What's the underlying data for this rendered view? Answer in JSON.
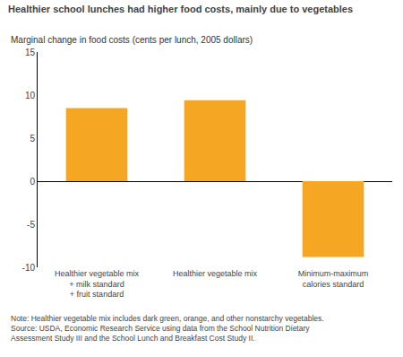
{
  "chart_data": {
    "type": "bar",
    "title": "Healthier school lunches had higher food costs, mainly due to vegetables",
    "ylabel": "Marginal change in food costs (cents per lunch, 2005 dollars)",
    "categories": [
      "Healthier vegetable mix\n+ milk standard\n+ fruit standard",
      "Healthier vegetable mix",
      "Minimum-maximum\ncalories standard"
    ],
    "values": [
      8.5,
      9.4,
      -8.8
    ],
    "color": "#F5A623",
    "ylim": [
      -10,
      15
    ],
    "yticks": [
      -10,
      -5,
      0,
      5,
      10,
      15
    ],
    "grid": false,
    "annotations": [
      "Note: Healthier vegetable mix includes dark green, orange, and other nonstarchy vegetables.",
      "Source: USDA, Economic Research Service using data from the School Nutrition Dietary",
      "Assessment Study III and the School Lunch and Breakfast Cost Study II."
    ]
  }
}
